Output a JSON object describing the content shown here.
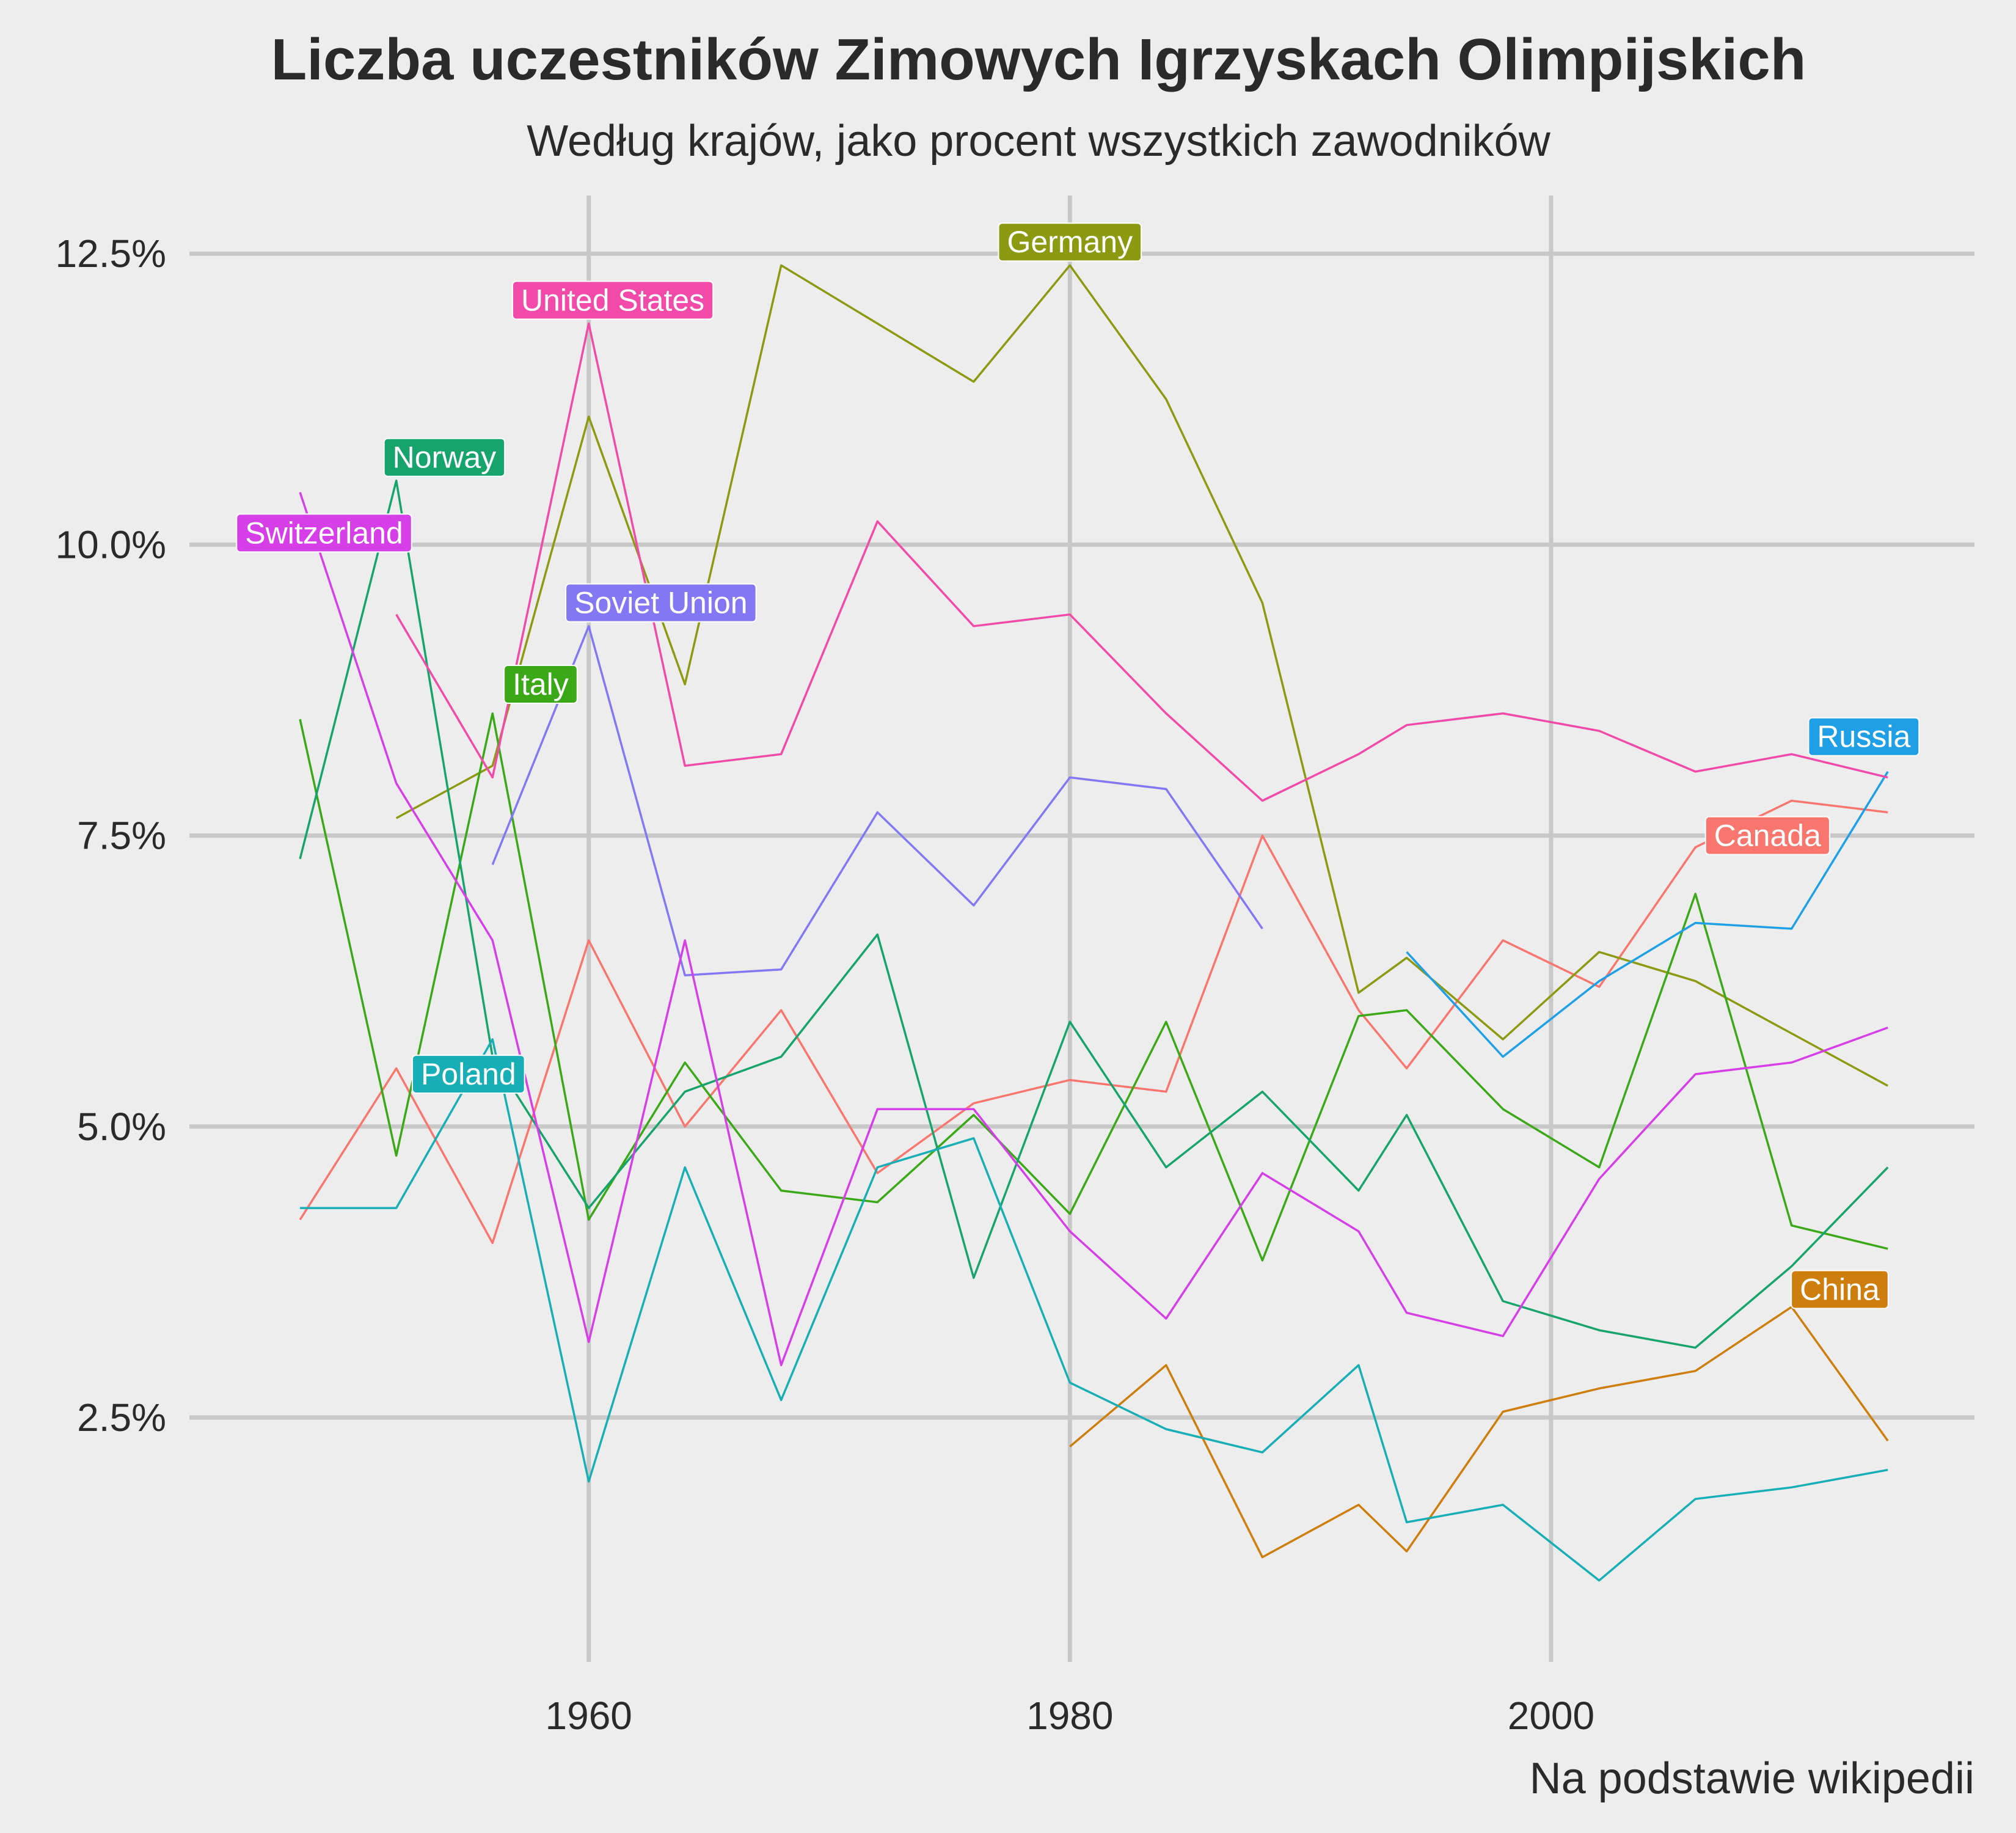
{
  "header": {
    "title": "Liczba uczestników Zimowych Igrzyskach Olimpijskich",
    "subtitle": "Według krajów, jako procent wszystkich zawodników"
  },
  "caption": "Na podstawie wikipedii",
  "chart_data": {
    "type": "line",
    "title": "Liczba uczestników Zimowych Igrzyskach Olimpijskich",
    "subtitle": "Według krajów, jako procent wszystkich zawodników",
    "xlabel": "",
    "ylabel": "",
    "xlim": [
      1943.4,
      2017.6
    ],
    "ylim": [
      0.4,
      13.0
    ],
    "grid": true,
    "legend": "none",
    "x_ticks": [
      1960,
      1980,
      2000
    ],
    "x_tick_labels": [
      "1960",
      "1980",
      "2000"
    ],
    "y_ticks": [
      2.5,
      5.0,
      7.5,
      10.0,
      12.5
    ],
    "y_tick_labels": [
      "2.5%",
      "5.0%",
      "7.5%",
      "10.0%",
      "12.5%"
    ],
    "series": [
      {
        "name": "Canada",
        "color": "#f8766d",
        "x": [
          1948,
          1952,
          1956,
          1960,
          1964,
          1968,
          1972,
          1976,
          1980,
          1984,
          1988,
          1992,
          1994,
          1998,
          2002,
          2006,
          2010,
          2014
        ],
        "y": [
          4.2,
          5.5,
          4.0,
          6.6,
          5.0,
          6.0,
          4.6,
          5.2,
          5.4,
          5.3,
          7.5,
          6.0,
          5.5,
          6.6,
          6.2,
          7.4,
          7.8,
          7.7
        ],
        "label": "Canada",
        "label_x": 2009,
        "label_y": 7.5
      },
      {
        "name": "China",
        "color": "#cd7e0c",
        "x": [
          1980,
          1984,
          1988,
          1992,
          1994,
          1998,
          2002,
          2006,
          2010,
          2014
        ],
        "y": [
          2.25,
          2.95,
          1.3,
          1.75,
          1.35,
          2.55,
          2.75,
          2.9,
          3.45,
          2.3
        ],
        "label": "China",
        "label_x": 2012,
        "label_y": 3.6
      },
      {
        "name": "Germany",
        "color": "#8c9a11",
        "x": [
          1952,
          1956,
          1960,
          1964,
          1968,
          1972,
          1976,
          1980,
          1984,
          1988,
          1992,
          1994,
          1998,
          2002,
          2006,
          2010,
          2014
        ],
        "y": [
          7.65,
          8.1,
          11.1,
          8.8,
          12.4,
          11.9,
          11.4,
          12.4,
          11.25,
          9.5,
          6.15,
          6.45,
          5.75,
          6.5,
          6.25,
          5.8,
          5.35
        ],
        "label": "Germany",
        "label_x": 1980,
        "label_y": 12.6
      },
      {
        "name": "Italy",
        "color": "#3aa817",
        "x": [
          1948,
          1952,
          1956,
          1960,
          1964,
          1968,
          1972,
          1976,
          1980,
          1984,
          1988,
          1992,
          1994,
          1998,
          2002,
          2006,
          2010,
          2014
        ],
        "y": [
          8.5,
          4.75,
          8.55,
          4.2,
          5.55,
          4.45,
          4.35,
          5.1,
          4.25,
          5.9,
          3.85,
          5.95,
          6.0,
          5.15,
          4.65,
          7.0,
          4.15,
          3.95
        ],
        "label": "Italy",
        "label_x": 1958,
        "label_y": 8.8
      },
      {
        "name": "Norway",
        "color": "#16a46c",
        "x": [
          1948,
          1952,
          1956,
          1960,
          1964,
          1968,
          1972,
          1976,
          1980,
          1984,
          1988,
          1992,
          1994,
          1998,
          2002,
          2006,
          2010,
          2014
        ],
        "y": [
          7.3,
          10.55,
          5.6,
          4.3,
          5.3,
          5.6,
          6.65,
          3.7,
          5.9,
          4.65,
          5.3,
          4.45,
          5.1,
          3.5,
          3.25,
          3.1,
          3.8,
          4.65
        ],
        "label": "Norway",
        "label_x": 1954,
        "label_y": 10.75
      },
      {
        "name": "Poland",
        "color": "#18aeb5",
        "x": [
          1948,
          1952,
          1956,
          1960,
          1964,
          1968,
          1972,
          1976,
          1980,
          1984,
          1988,
          1992,
          1994,
          1998,
          2002,
          2006,
          2010,
          2014
        ],
        "y": [
          4.3,
          4.3,
          5.75,
          1.95,
          4.65,
          2.65,
          4.65,
          4.9,
          2.8,
          2.4,
          2.2,
          2.95,
          1.6,
          1.75,
          1.1,
          1.8,
          1.9,
          2.05
        ],
        "label": "Poland",
        "label_x": 1955,
        "label_y": 5.45
      },
      {
        "name": "Russia",
        "color": "#1fa0e6",
        "x": [
          1994,
          1998,
          2002,
          2006,
          2010,
          2014
        ],
        "y": [
          6.5,
          5.6,
          6.25,
          6.75,
          6.7,
          8.05
        ],
        "label": "Russia",
        "label_x": 2013,
        "label_y": 8.35
      },
      {
        "name": "Soviet Union",
        "color": "#8477f4",
        "x": [
          1956,
          1960,
          1964,
          1968,
          1972,
          1976,
          1980,
          1984,
          1988
        ],
        "y": [
          7.25,
          9.3,
          6.3,
          6.35,
          7.7,
          6.9,
          8.0,
          7.9,
          6.7
        ],
        "label": "Soviet Union",
        "label_x": 1963,
        "label_y": 9.5
      },
      {
        "name": "Switzerland",
        "color": "#d63ee8",
        "x": [
          1948,
          1952,
          1956,
          1960,
          1964,
          1968,
          1972,
          1976,
          1980,
          1984,
          1988,
          1992,
          1994,
          1998,
          2002,
          2006,
          2010,
          2014
        ],
        "y": [
          10.45,
          7.95,
          6.6,
          3.15,
          6.6,
          2.95,
          5.15,
          5.15,
          4.1,
          3.35,
          4.6,
          4.1,
          3.4,
          3.2,
          4.55,
          5.45,
          5.55,
          5.85
        ],
        "label": "Switzerland",
        "label_x": 1949,
        "label_y": 10.1
      },
      {
        "name": "United States",
        "color": "#f14aa8",
        "x": [
          1952,
          1956,
          1960,
          1964,
          1968,
          1972,
          1976,
          1980,
          1984,
          1988,
          1992,
          1994,
          1998,
          2002,
          2006,
          2010,
          2014
        ],
        "y": [
          9.4,
          8.0,
          11.9,
          8.1,
          8.2,
          10.2,
          9.3,
          9.4,
          8.55,
          7.8,
          8.2,
          8.45,
          8.55,
          8.4,
          8.05,
          8.2,
          8.0
        ],
        "label": "United States",
        "label_x": 1961,
        "label_y": 12.1
      }
    ]
  }
}
